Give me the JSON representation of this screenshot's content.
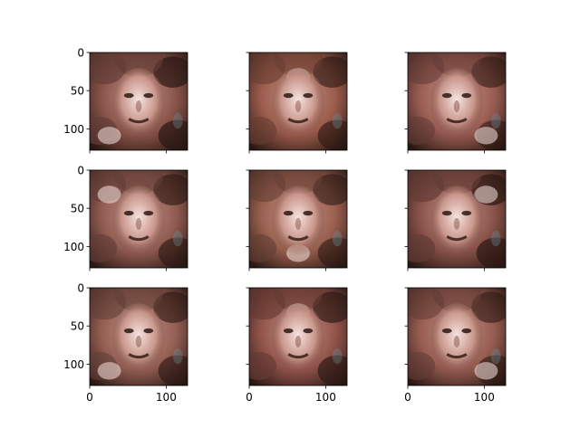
{
  "chart_data": {
    "type": "image-grid",
    "layout": {
      "rows": 3,
      "cols": 3,
      "sharex": true,
      "sharey": true
    },
    "panels": [
      {
        "row": 0,
        "col": 0,
        "hue": 10,
        "sat": 30,
        "dark": 0.35
      },
      {
        "row": 0,
        "col": 1,
        "hue": 12,
        "sat": 34,
        "dark": 0.25
      },
      {
        "row": 0,
        "col": 2,
        "hue": 8,
        "sat": 30,
        "dark": 0.22
      },
      {
        "row": 1,
        "col": 0,
        "hue": 10,
        "sat": 28,
        "dark": 0.28
      },
      {
        "row": 1,
        "col": 1,
        "hue": 14,
        "sat": 32,
        "dark": 0.24
      },
      {
        "row": 1,
        "col": 2,
        "hue": 9,
        "sat": 30,
        "dark": 0.34
      },
      {
        "row": 2,
        "col": 0,
        "hue": 11,
        "sat": 28,
        "dark": 0.26
      },
      {
        "row": 2,
        "col": 1,
        "hue": 8,
        "sat": 32,
        "dark": 0.3
      },
      {
        "row": 2,
        "col": 2,
        "hue": 10,
        "sat": 30,
        "dark": 0.24
      }
    ],
    "image_width": 128,
    "image_height": 128,
    "xlim": [
      0,
      128
    ],
    "ylim": [
      128,
      0
    ],
    "x_ticks": [
      0,
      100
    ],
    "y_ticks": [
      0,
      50,
      100
    ],
    "x_tick_labels": [
      "0",
      "100"
    ],
    "y_tick_labels": [
      "0",
      "50",
      "100"
    ],
    "colors": {
      "skin": "#c9968b",
      "shadow": "#2a1712",
      "highlight": "#f4e3df",
      "accent_blue": "#6f8f9a",
      "axes_edge": "#000000"
    }
  }
}
